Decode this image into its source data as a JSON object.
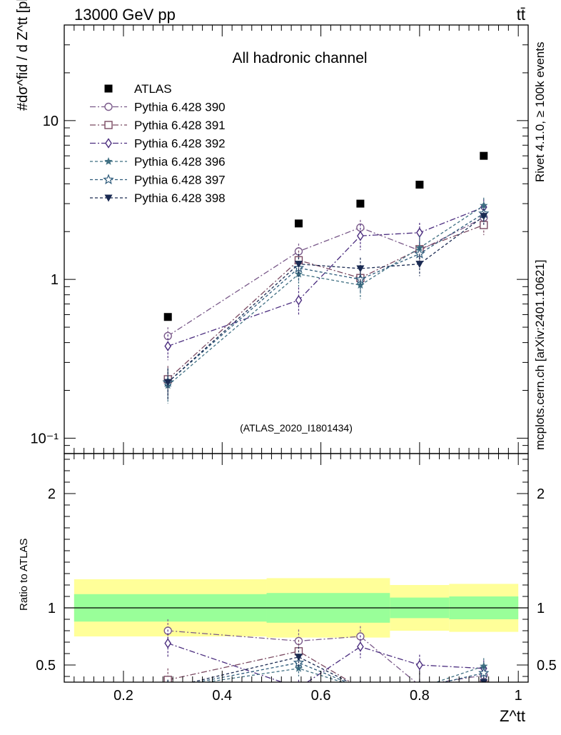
{
  "header": {
    "left": "13000 GeV pp",
    "right": "tt̄"
  },
  "side_text": {
    "rivet": "Rivet 4.1.0, ≥ 100k events",
    "mcplots": "mcplots.cern.ch [arXiv:2401.10621]"
  },
  "chart_data": [
    {
      "type": "scatter",
      "title": "All hadronic channel",
      "watermark": "(ATLAS_2020_I1801434)",
      "ylabel": "#dσ^fid / d Z^tt [pb]",
      "yscale": "log",
      "xlim": [
        0.08,
        1.02
      ],
      "ylim": [
        0.08,
        40
      ],
      "yticks": [
        0.1,
        1,
        10
      ],
      "ytick_labels": [
        "10⁻¹",
        "1",
        "10"
      ],
      "x": [
        0.29,
        0.555,
        0.68,
        0.8,
        0.93
      ],
      "series": [
        {
          "name": "ATLAS",
          "values": [
            0.58,
            2.25,
            3.0,
            3.95,
            6.0
          ],
          "color": "#000000",
          "marker": "square-filled"
        },
        {
          "name": "Pythia 6.428 390",
          "values": [
            0.44,
            1.5,
            2.12,
            1.52,
            2.45
          ],
          "color": "#7a5a8a",
          "marker": "circle-open",
          "dash": "8,3,2,3",
          "err": [
            0.06,
            0.18,
            0.25,
            0.2,
            0.3
          ]
        },
        {
          "name": "Pythia 6.428 391",
          "values": [
            0.235,
            1.32,
            1.02,
            1.55,
            2.2
          ],
          "color": "#7a4a62",
          "marker": "square-open",
          "dash": "8,3,2,3",
          "err": [
            0.05,
            0.2,
            0.15,
            0.25,
            0.3
          ]
        },
        {
          "name": "Pythia 6.428 392",
          "values": [
            0.38,
            0.74,
            1.88,
            1.97,
            2.85
          ],
          "color": "#4b2d7f",
          "marker": "diamond-open",
          "dash": "8,3,2,3",
          "err": [
            0.07,
            0.15,
            0.35,
            0.3,
            0.35
          ]
        },
        {
          "name": "Pythia 6.428 396",
          "values": [
            0.215,
            1.08,
            0.92,
            1.58,
            2.92
          ],
          "color": "#3f6f82",
          "marker": "star-filled",
          "dash": "4,3",
          "err": [
            0.05,
            0.18,
            0.17,
            0.3,
            0.35
          ]
        },
        {
          "name": "Pythia 6.428 397",
          "values": [
            0.225,
            1.18,
            1.0,
            1.45,
            2.6
          ],
          "color": "#2d5a7a",
          "marker": "star-open",
          "dash": "4,3",
          "err": [
            0.05,
            0.2,
            0.17,
            0.25,
            0.3
          ]
        },
        {
          "name": "Pythia 6.428 398",
          "values": [
            0.225,
            1.25,
            1.17,
            1.25,
            2.5
          ],
          "color": "#1a2a52",
          "marker": "triangle-down-filled",
          "dash": "4,3",
          "err": [
            0.05,
            0.2,
            0.2,
            0.2,
            0.3
          ]
        }
      ]
    },
    {
      "type": "line",
      "ylabel": "Ratio to ATLAS",
      "xlabel": "Z^tt",
      "xlim": [
        0.08,
        1.02
      ],
      "ylim": [
        0.35,
        2.35
      ],
      "xticks": [
        0.2,
        0.4,
        0.6,
        0.8,
        1
      ],
      "xtick_labels": [
        "0.2",
        "0.4",
        "0.6",
        "0.8",
        "1"
      ],
      "yticks": [
        0.5,
        1,
        2
      ],
      "ytick_labels": [
        "0.5",
        "1",
        "2"
      ],
      "bins": [
        [
          0.1,
          0.49
        ],
        [
          0.49,
          0.74
        ],
        [
          0.74,
          0.86
        ],
        [
          0.86,
          1.0
        ]
      ],
      "band_outer": [
        [
          0.75,
          1.25
        ],
        [
          0.74,
          1.26
        ],
        [
          0.8,
          1.2
        ],
        [
          0.79,
          1.21
        ]
      ],
      "band_inner": [
        [
          0.88,
          1.12
        ],
        [
          0.87,
          1.13
        ],
        [
          0.91,
          1.09
        ],
        [
          0.9,
          1.1
        ]
      ],
      "band_colors": {
        "outer": "#ffff99",
        "inner": "#99ff99"
      },
      "x": [
        0.29,
        0.555,
        0.68,
        0.8,
        0.93
      ],
      "series": [
        {
          "name": "Pythia 6.428 390",
          "values": [
            0.8,
            0.71,
            0.75,
            0.32,
            0.41
          ],
          "err": [
            0.1,
            0.1,
            0.09,
            0.06,
            0.05
          ]
        },
        {
          "name": "Pythia 6.428 391",
          "values": [
            0.37,
            0.62,
            0.3,
            0.3,
            0.33
          ],
          "err": [
            0.1,
            0.1,
            0.06,
            0.06,
            0.05
          ]
        },
        {
          "name": "Pythia 6.428 392",
          "values": [
            0.69,
            0.3,
            0.66,
            0.5,
            0.47
          ],
          "err": [
            0.12,
            0.07,
            0.1,
            0.09,
            0.07
          ]
        },
        {
          "name": "Pythia 6.428 396",
          "values": [
            0.3,
            0.47,
            0.3,
            0.3,
            0.49
          ],
          "err": [
            0.07,
            0.07,
            0.06,
            0.06,
            0.07
          ]
        },
        {
          "name": "Pythia 6.428 397",
          "values": [
            0.3,
            0.52,
            0.3,
            0.3,
            0.43
          ],
          "err": [
            0.07,
            0.08,
            0.06,
            0.06,
            0.06
          ]
        },
        {
          "name": "Pythia 6.428 398",
          "values": [
            0.3,
            0.57,
            0.3,
            0.3,
            0.35
          ],
          "err": [
            0.07,
            0.09,
            0.06,
            0.06,
            0.05
          ]
        }
      ]
    }
  ]
}
